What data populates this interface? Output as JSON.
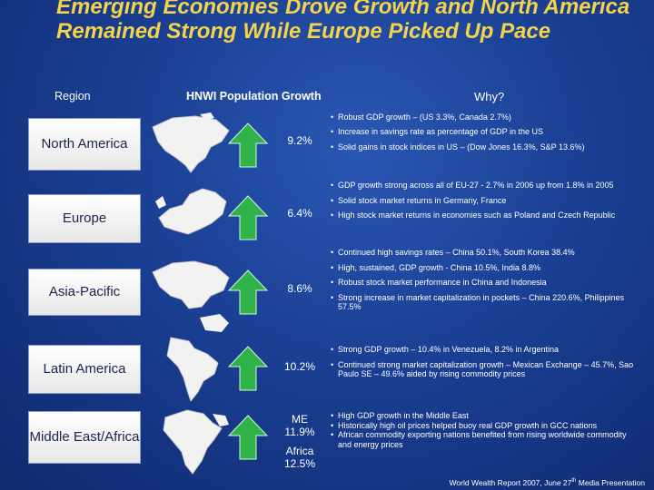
{
  "title": "Emerging Economies Drove Growth and North America Remained Strong While Europe Picked Up Pace",
  "headers": {
    "region": "Region",
    "growth": "HNWI Population Growth",
    "why": "Why?"
  },
  "rows": [
    {
      "region": "North America",
      "growth_label": "9.2%",
      "bullets": [
        "Robust GDP growth – (US 3.3%, Canada 2.7%)",
        "Increase in savings rate as percentage of GDP in the US",
        "Solid gains in stock indices in US – (Dow Jones 16.3%, S&P 13.6%)"
      ]
    },
    {
      "region": "Europe",
      "growth_label": "6.4%",
      "bullets": [
        "GDP growth strong across all of EU-27 - 2.7% in 2006 up from 1.8% in 2005",
        "Solid stock market returns in Germany, France",
        "High stock market returns in economies such as Poland and Czech Republic"
      ]
    },
    {
      "region": "Asia-Pacific",
      "growth_label": "8.6%",
      "bullets": [
        "Continued high savings rates – China 50.1%, South Korea 38.4%",
        "High, sustained, GDP growth - China 10.5%, India 8.8%",
        "Robust stock market performance in China and Indonesia",
        "Strong increase in market capitalization in pockets – China 220.6%, Philippines 57.5%"
      ]
    },
    {
      "region": "Latin America",
      "growth_label": "10.2%",
      "bullets": [
        "Strong GDP growth – 10.4% in Venezuela, 8.2% in Argentina",
        "Continued strong market capitalization growth – Mexican Exchange – 45.7%, Sao Paulo SE – 49.6% aided by rising commodity prices"
      ]
    },
    {
      "region": "Middle East/Africa",
      "growth_me_label": "ME",
      "growth_me": "11.9%",
      "growth_africa_label": "Africa",
      "growth_africa": "12.5%",
      "bullets": [
        "High GDP growth in the Middle East",
        "Historically high oil prices helped buoy real GDP growth in GCC nations",
        "African commodity exporting nations benefited from rising worldwide commodity and energy prices"
      ]
    }
  ],
  "footer": {
    "text": "World Wealth Report 2007, June 27",
    "sup": "th",
    "suffix": " Media Presentation"
  },
  "colors": {
    "title": "#f3d34a",
    "arrow": "#2fb24a",
    "map": "#f2f2f2"
  }
}
